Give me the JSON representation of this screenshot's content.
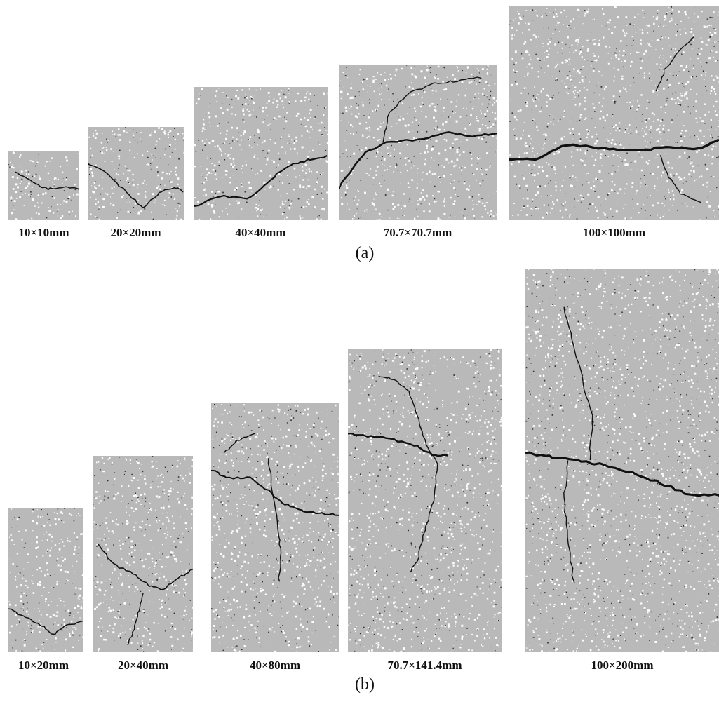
{
  "row_a": {
    "panel_label": "(a)",
    "specimens": [
      {
        "label": "10×10mm"
      },
      {
        "label": "20×20mm"
      },
      {
        "label": "40×40mm"
      },
      {
        "label": "70.7×70.7mm"
      },
      {
        "label": "100×100mm"
      }
    ]
  },
  "row_b": {
    "panel_label": "(b)",
    "specimens": [
      {
        "label": "10×20mm"
      },
      {
        "label": "20×40mm"
      },
      {
        "label": "40×80mm"
      },
      {
        "label": "70.7×141.4mm"
      },
      {
        "label": "100×200mm"
      }
    ]
  }
}
